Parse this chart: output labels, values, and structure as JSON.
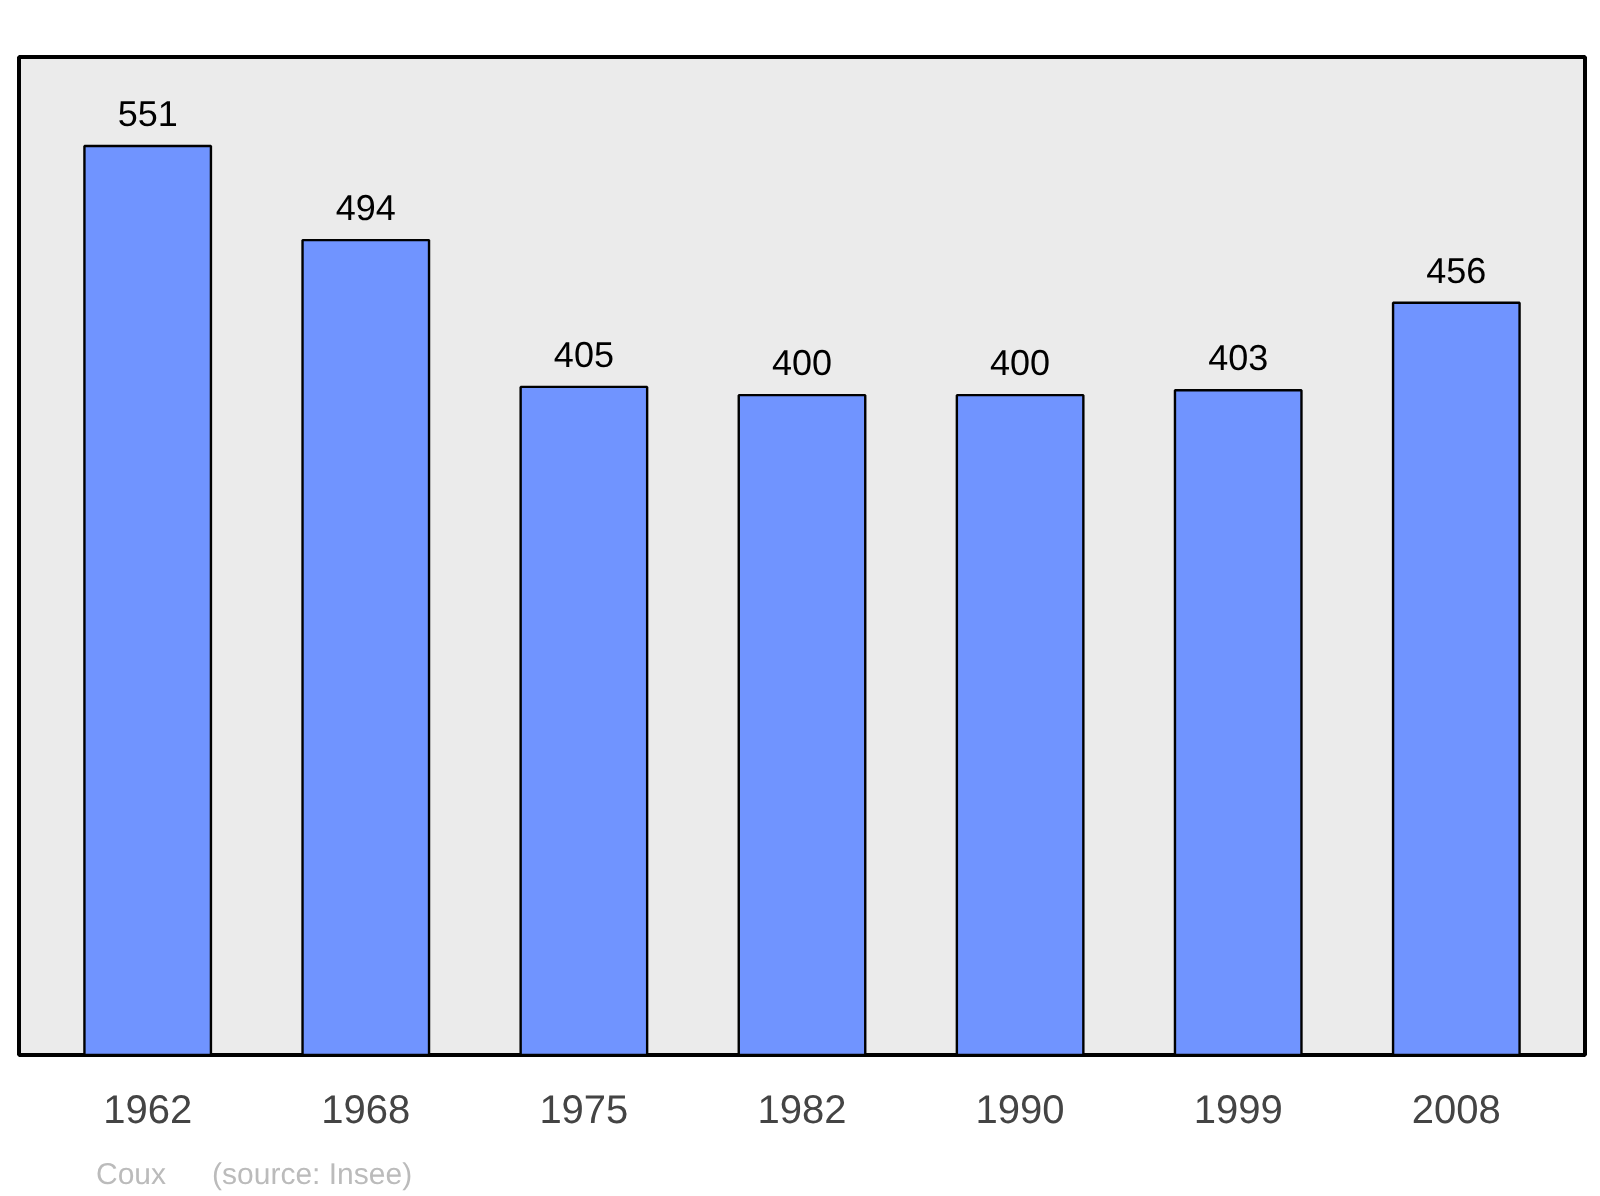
{
  "chart_data": {
    "type": "bar",
    "categories": [
      "1962",
      "1968",
      "1975",
      "1982",
      "1990",
      "1999",
      "2008"
    ],
    "values": [
      551,
      494,
      405,
      400,
      400,
      403,
      456
    ],
    "color": "#7094ff",
    "data_labels": true,
    "tick_labels": "x",
    "annotations": [
      "Coux",
      "(source: Insee)"
    ]
  }
}
